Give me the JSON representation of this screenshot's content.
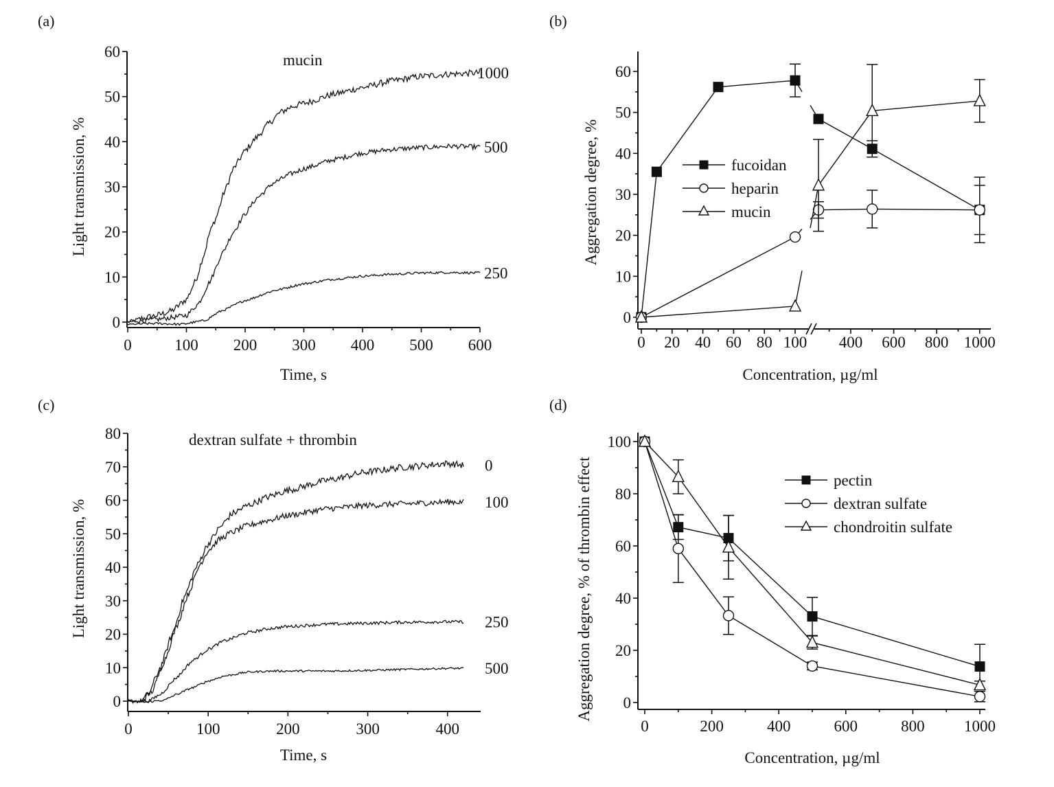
{
  "chart_data": [
    {
      "id": "a",
      "panel_label": "(a)",
      "type": "line",
      "annotation": "mucin",
      "xlabel": "Time, s",
      "ylabel": "Light transmission, %",
      "xlim": [
        0,
        600
      ],
      "ylim": [
        0,
        60
      ],
      "xticks": [
        0,
        100,
        200,
        300,
        400,
        500,
        600
      ],
      "yticks": [
        0,
        10,
        20,
        30,
        40,
        50,
        60
      ],
      "grid": false,
      "series": [
        {
          "name": "1000",
          "label": "1000",
          "x": [
            0,
            25,
            50,
            75,
            100,
            115,
            130,
            140,
            150,
            165,
            180,
            200,
            220,
            240,
            260,
            280,
            300,
            350,
            400,
            450,
            500,
            550,
            600
          ],
          "values": [
            0,
            0.8,
            1.5,
            2.5,
            5,
            9,
            15,
            20,
            23,
            29,
            34,
            38,
            41,
            44,
            46.5,
            47.8,
            48.5,
            50.5,
            52,
            53.5,
            54.5,
            55,
            55.3
          ]
        },
        {
          "name": "500",
          "label": "500",
          "x": [
            0,
            25,
            50,
            75,
            100,
            120,
            140,
            160,
            180,
            200,
            220,
            250,
            280,
            300,
            350,
            400,
            450,
            500,
            550,
            600
          ],
          "values": [
            0,
            0.3,
            0.6,
            1,
            1.5,
            4,
            9,
            15,
            20,
            24,
            27.5,
            31,
            33,
            34,
            36,
            37.5,
            38.3,
            38.7,
            39,
            38.8
          ]
        },
        {
          "name": "250",
          "label": "250",
          "x": [
            0,
            50,
            90,
            130,
            160,
            200,
            250,
            300,
            350,
            400,
            450,
            500,
            550,
            600
          ],
          "values": [
            -0.5,
            -0.3,
            -0.5,
            0.3,
            2.5,
            4.8,
            7,
            8.5,
            9.5,
            10.2,
            10.6,
            10.9,
            11,
            10.9
          ]
        }
      ]
    },
    {
      "id": "b",
      "panel_label": "(b)",
      "type": "line",
      "xlabel": "Concentration, µg/ml",
      "ylabel": "Aggregation degree, %",
      "x_axis_break": {
        "left_range": [
          0,
          100
        ],
        "right_range": [
          250,
          1000
        ]
      },
      "xlim": [
        0,
        1000
      ],
      "ylim": [
        0,
        65
      ],
      "xticks": [
        0,
        20,
        40,
        60,
        80,
        100,
        400,
        600,
        800,
        1000
      ],
      "yticks": [
        0,
        10,
        20,
        30,
        40,
        50,
        60
      ],
      "grid": false,
      "legend_position": "center-left",
      "series": [
        {
          "name": "fucoidan",
          "marker": "filled-square",
          "x": [
            0,
            10,
            50,
            100,
            250,
            500,
            1000
          ],
          "values": [
            0,
            35.5,
            56.2,
            57.8,
            48.4,
            41.1,
            26.2
          ],
          "error": [
            null,
            null,
            null,
            4.0,
            null,
            2.0,
            8.0
          ]
        },
        {
          "name": "heparin",
          "marker": "open-circle",
          "x": [
            0,
            100,
            250,
            500,
            1000
          ],
          "values": [
            0,
            19.6,
            26.2,
            26.4,
            26.2
          ],
          "error": [
            null,
            null,
            2.0,
            4.6,
            6.0
          ]
        },
        {
          "name": "mucin",
          "marker": "open-triangle",
          "x": [
            0,
            100,
            250,
            500,
            1000
          ],
          "values": [
            0,
            2.7,
            32.2,
            50.4,
            52.8
          ],
          "error": [
            null,
            null,
            11.2,
            11.3,
            5.2
          ]
        }
      ]
    },
    {
      "id": "c",
      "panel_label": "(c)",
      "type": "line",
      "annotation": "dextran sulfate + thrombin",
      "xlabel": "Time, s",
      "ylabel": "Light transmission, %",
      "xlim": [
        0,
        420
      ],
      "ylim": [
        0,
        80
      ],
      "xticks": [
        0,
        100,
        200,
        300,
        400
      ],
      "yticks": [
        0,
        10,
        20,
        30,
        40,
        50,
        60,
        70,
        80
      ],
      "grid": false,
      "series": [
        {
          "name": "0",
          "label": "0",
          "x": [
            0,
            15,
            25,
            40,
            55,
            70,
            85,
            100,
            115,
            130,
            150,
            175,
            200,
            250,
            300,
            350,
            400,
            420
          ],
          "values": [
            0,
            0,
            2,
            10,
            20,
            31,
            40,
            47,
            52,
            56,
            58.5,
            61,
            63,
            66,
            68.5,
            70,
            71,
            70.5
          ]
        },
        {
          "name": "100",
          "label": "100",
          "x": [
            0,
            15,
            30,
            45,
            60,
            75,
            90,
            100,
            115,
            130,
            150,
            175,
            200,
            250,
            300,
            350,
            400,
            420
          ],
          "values": [
            0,
            -0.3,
            3,
            12,
            22,
            32,
            41,
            45,
            48.5,
            50.5,
            52.5,
            54,
            55.5,
            57.5,
            58.5,
            59,
            59.5,
            59.5
          ]
        },
        {
          "name": "250",
          "label": "250",
          "x": [
            0,
            25,
            40,
            60,
            80,
            100,
            120,
            150,
            180,
            200,
            250,
            300,
            350,
            400,
            420
          ],
          "values": [
            0,
            0,
            2,
            7,
            12,
            15.5,
            18,
            20.5,
            21.8,
            22.3,
            23,
            23.3,
            23.6,
            23.7,
            23.7
          ]
        },
        {
          "name": "500",
          "label": "500",
          "x": [
            0,
            20,
            45,
            60,
            80,
            100,
            120,
            150,
            180,
            200,
            250,
            300,
            350,
            400,
            420
          ],
          "values": [
            0,
            -0.3,
            0.3,
            2,
            4,
            6,
            7.5,
            8.7,
            9,
            9,
            9,
            9.2,
            9.5,
            9.8,
            9.8
          ]
        }
      ]
    },
    {
      "id": "d",
      "panel_label": "(d)",
      "type": "line",
      "xlabel": "Concentration, µg/ml",
      "ylabel": "Aggregation degree, % of thrombin effect",
      "xlim": [
        0,
        1000
      ],
      "ylim": [
        0,
        100
      ],
      "xticks": [
        0,
        200,
        400,
        600,
        800,
        1000
      ],
      "yticks": [
        0,
        20,
        40,
        60,
        80,
        100
      ],
      "grid": false,
      "legend_position": "top-right",
      "series": [
        {
          "name": "pectin",
          "marker": "filled-square",
          "x": [
            0,
            100,
            250,
            500,
            1000
          ],
          "values": [
            100,
            67.2,
            63.0,
            33.0,
            13.8
          ],
          "error": [
            null,
            4.7,
            8.7,
            7.3,
            8.5
          ]
        },
        {
          "name": "dextran sulfate",
          "marker": "open-circle",
          "x": [
            0,
            100,
            250,
            500,
            1000
          ],
          "values": [
            100,
            59.0,
            33.3,
            14.0,
            2.3
          ],
          "error": [
            null,
            13.0,
            7.2,
            1.5,
            2.0
          ]
        },
        {
          "name": "chondroitin sulfate",
          "marker": "open-triangle",
          "x": [
            0,
            100,
            250,
            500,
            1000
          ],
          "values": [
            100,
            86.5,
            59.5,
            23.0,
            6.7
          ],
          "error": [
            null,
            6.5,
            12.2,
            2.5,
            1.5
          ]
        }
      ]
    }
  ]
}
